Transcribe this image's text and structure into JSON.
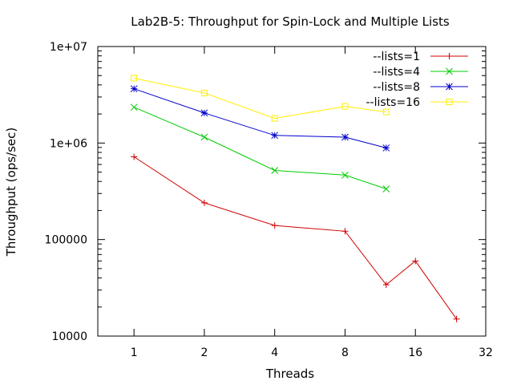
{
  "chart_data": {
    "type": "line",
    "title": "Lab2B-5: Throughput for Spin-Lock and Multiple Lists",
    "xlabel": "Threads",
    "ylabel": "Throughput (ops/sec)",
    "x_scale": "log2",
    "y_scale": "log10",
    "xlim": [
      0.7,
      32
    ],
    "ylim": [
      10000,
      10000000
    ],
    "x_ticks": [
      {
        "value": 1,
        "label": "1"
      },
      {
        "value": 2,
        "label": "2"
      },
      {
        "value": 4,
        "label": "4"
      },
      {
        "value": 8,
        "label": "8"
      },
      {
        "value": 16,
        "label": "16"
      },
      {
        "value": 32,
        "label": "32"
      }
    ],
    "y_ticks": [
      {
        "value": 10000,
        "label": "10000"
      },
      {
        "value": 100000,
        "label": "100000"
      },
      {
        "value": 1000000,
        "label": "1e+06"
      },
      {
        "value": 10000000,
        "label": "1e+07"
      }
    ],
    "legend": "top-right",
    "grid": false,
    "series": [
      {
        "name": "--lists=1",
        "color": "#d00000",
        "marker": "plus",
        "x": [
          1,
          2,
          4,
          8,
          12,
          16,
          24
        ],
        "y": [
          720000,
          240000,
          140000,
          122000,
          34000,
          60000,
          15000
        ]
      },
      {
        "name": "--lists=4",
        "color": "#00cc00",
        "marker": "cross",
        "x": [
          1,
          2,
          4,
          8,
          12
        ],
        "y": [
          2350000,
          1150000,
          520000,
          465000,
          335000
        ]
      },
      {
        "name": "--lists=8",
        "color": "#0000cc",
        "marker": "star",
        "x": [
          1,
          2,
          4,
          8,
          12
        ],
        "y": [
          3650000,
          2050000,
          1200000,
          1150000,
          890000
        ]
      },
      {
        "name": "--lists=16",
        "color": "#ffee00",
        "marker": "square",
        "x": [
          1,
          2,
          4,
          8,
          12
        ],
        "y": [
          4700000,
          3300000,
          1800000,
          2400000,
          2100000
        ]
      }
    ]
  }
}
